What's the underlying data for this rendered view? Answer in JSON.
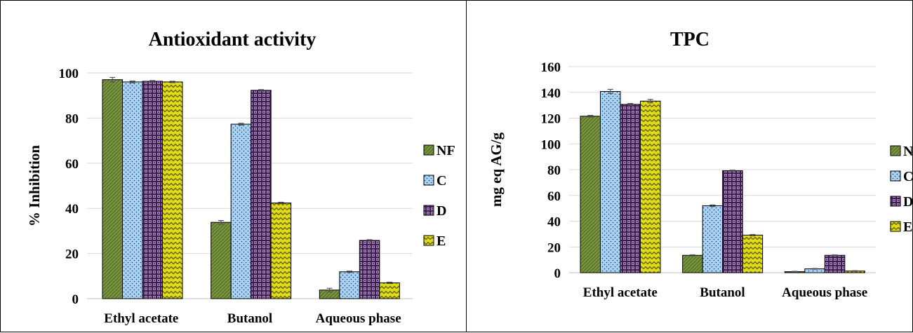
{
  "chart_data": [
    {
      "type": "bar",
      "title": "Antioxidant activity",
      "xlabel": "",
      "ylabel": "% Inhibition",
      "categories": [
        "Ethyl acetate",
        "Butanol",
        "Aqueous phase"
      ],
      "ylim": [
        0,
        100
      ],
      "yticks": [
        0,
        20,
        40,
        60,
        80,
        100
      ],
      "grid": true,
      "legend_position": "right",
      "series": [
        {
          "name": "NF",
          "values": [
            97.0,
            33.8,
            3.8
          ],
          "errors": [
            1.0,
            0.8,
            0.8
          ],
          "color": "#5f7a2e",
          "pattern": "diag"
        },
        {
          "name": "C",
          "values": [
            96.0,
            77.3,
            11.9
          ],
          "errors": [
            0.4,
            0.4,
            0.3
          ],
          "color": "#a9d2f5",
          "pattern": "dots"
        },
        {
          "name": "D",
          "values": [
            96.3,
            92.3,
            25.8
          ],
          "errors": [
            0.3,
            0.3,
            0.3
          ],
          "color": "#4a2a5c",
          "pattern": "grid"
        },
        {
          "name": "E",
          "values": [
            96.0,
            42.4,
            7.0
          ],
          "errors": [
            0.3,
            0.3,
            0.3
          ],
          "color": "#d6d400",
          "pattern": "wave"
        }
      ]
    },
    {
      "type": "bar",
      "title": "TPC",
      "xlabel": "",
      "ylabel": "mg eq AG/g",
      "categories": [
        "Ethyl acetate",
        "Butanol",
        "Aqueous phase"
      ],
      "ylim": [
        0,
        160
      ],
      "yticks": [
        0,
        20,
        40,
        60,
        80,
        100,
        120,
        140,
        160
      ],
      "grid": true,
      "legend_position": "right",
      "series": [
        {
          "name": "NF",
          "values": [
            121.5,
            13.5,
            0.8
          ],
          "errors": [
            0.6,
            0.4,
            0.3
          ],
          "color": "#5f7a2e",
          "pattern": "diag"
        },
        {
          "name": "C",
          "values": [
            140.7,
            52.0,
            3.0
          ],
          "errors": [
            1.6,
            0.6,
            0.3
          ],
          "color": "#a9d2f5",
          "pattern": "dots"
        },
        {
          "name": "D",
          "values": [
            130.7,
            79.2,
            13.5
          ],
          "errors": [
            0.7,
            0.4,
            0.3
          ],
          "color": "#4a2a5c",
          "pattern": "grid"
        },
        {
          "name": "E",
          "values": [
            133.2,
            29.2,
            1.3
          ],
          "errors": [
            1.3,
            0.5,
            0.3
          ],
          "color": "#d6d400",
          "pattern": "wave"
        }
      ]
    }
  ]
}
